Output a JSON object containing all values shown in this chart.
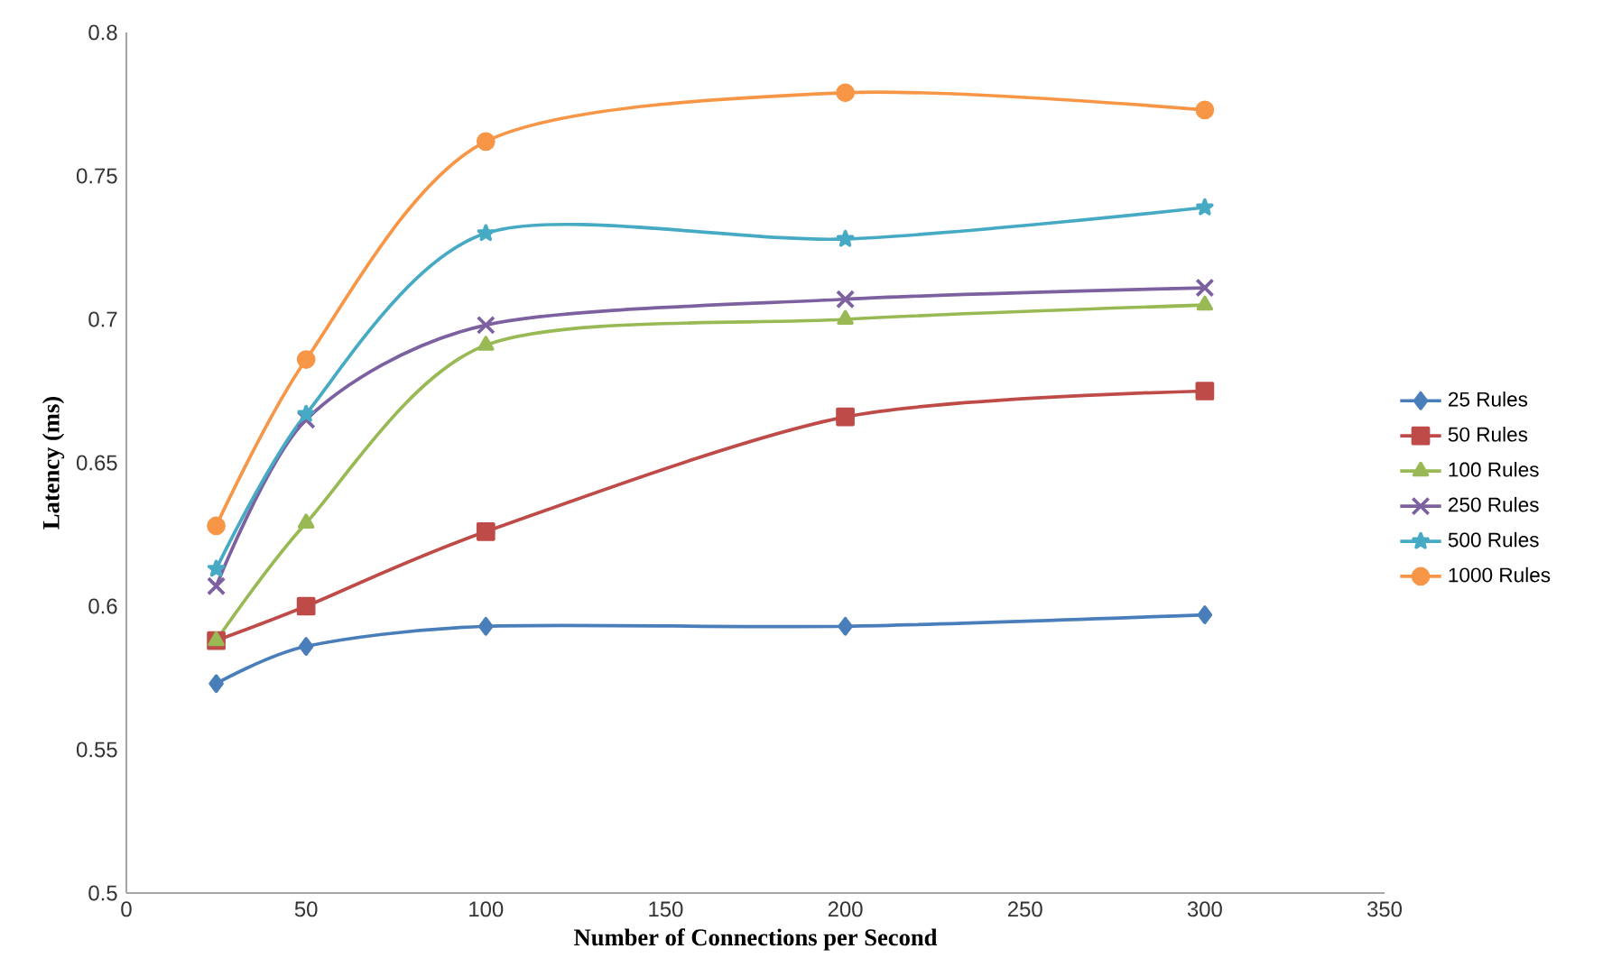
{
  "chart_data": {
    "type": "line",
    "xlabel": "Number  of Connections per Second",
    "ylabel": "Latency (ms)",
    "x": [
      25,
      50,
      100,
      200,
      300
    ],
    "xlim": [
      0,
      350
    ],
    "xticks": [
      0,
      50,
      100,
      150,
      200,
      250,
      300,
      350
    ],
    "ylim": [
      0.5,
      0.8
    ],
    "yticks": [
      0.5,
      0.55,
      0.6,
      0.65,
      0.7,
      0.75,
      0.8
    ],
    "grid": false,
    "legend": "right",
    "line_style": "solid",
    "series": [
      {
        "name": "25 Rules",
        "color": "#4a7ebb",
        "marker": "diamond",
        "values": [
          0.573,
          0.586,
          0.593,
          0.593,
          0.597
        ]
      },
      {
        "name": "50 Rules",
        "color": "#be4b48",
        "marker": "square",
        "values": [
          0.588,
          0.6,
          0.626,
          0.666,
          0.675
        ]
      },
      {
        "name": "100 Rules",
        "color": "#98b954",
        "marker": "triangle",
        "values": [
          0.588,
          0.629,
          0.691,
          0.7,
          0.705
        ]
      },
      {
        "name": "250 Rules",
        "color": "#7d60a0",
        "marker": "cross",
        "values": [
          0.607,
          0.665,
          0.698,
          0.707,
          0.711
        ]
      },
      {
        "name": "500 Rules",
        "color": "#46aac5",
        "marker": "star",
        "values": [
          0.613,
          0.667,
          0.73,
          0.728,
          0.739
        ]
      },
      {
        "name": "1000 Rules",
        "color": "#f79646",
        "marker": "circle",
        "values": [
          0.628,
          0.686,
          0.762,
          0.779,
          0.773
        ]
      }
    ]
  }
}
